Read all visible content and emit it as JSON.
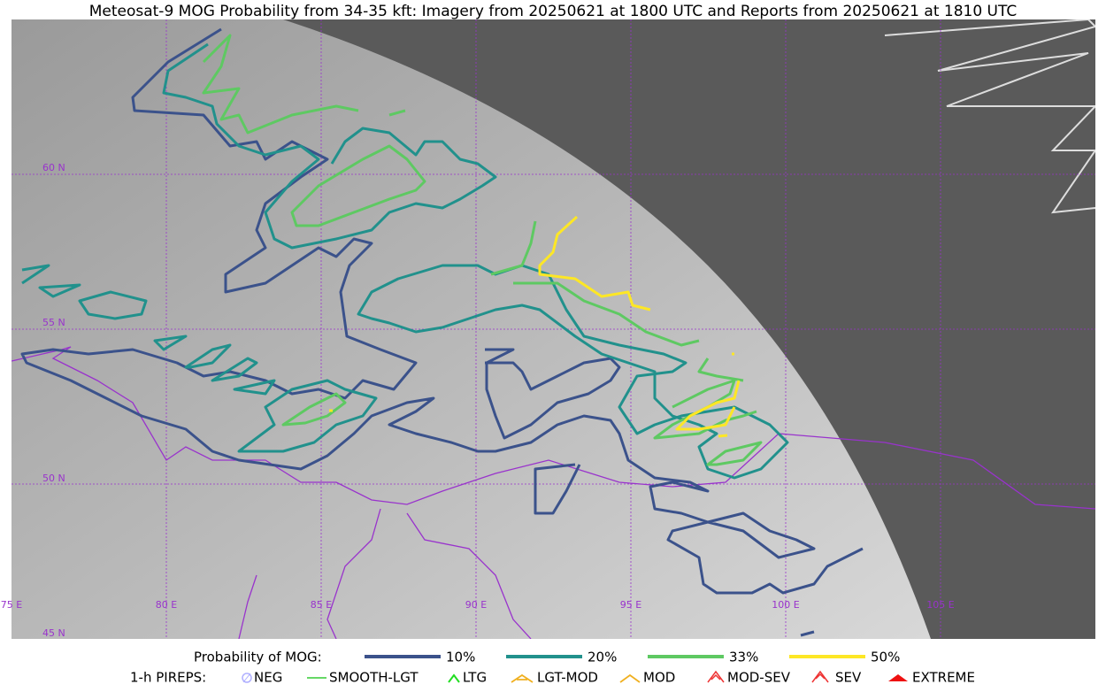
{
  "title": "Meteosat-9 MOG Probability from 34-35 kft: Imagery from 20250621 at 1800 UTC and Reports from 20250621 at 1810 UTC",
  "grid": {
    "lat_labels": [
      "60 N",
      "55 N",
      "50 N",
      "45 N"
    ],
    "lon_labels": [
      "75 E",
      "80 E",
      "85 E",
      "90 E",
      "95 E",
      "100 E",
      "105 E"
    ]
  },
  "legend": {
    "probability_title": "Probability of MOG:",
    "probability_items": [
      "10%",
      "20%",
      "33%",
      "50%"
    ],
    "pireps_title": "1-h PIREPS:",
    "pireps_items": [
      "NEG",
      "SMOOTH-LGT",
      "LTG",
      "LGT-MOD",
      "MOD",
      "MOD-SEV",
      "SEV",
      "EXTREME"
    ]
  }
}
